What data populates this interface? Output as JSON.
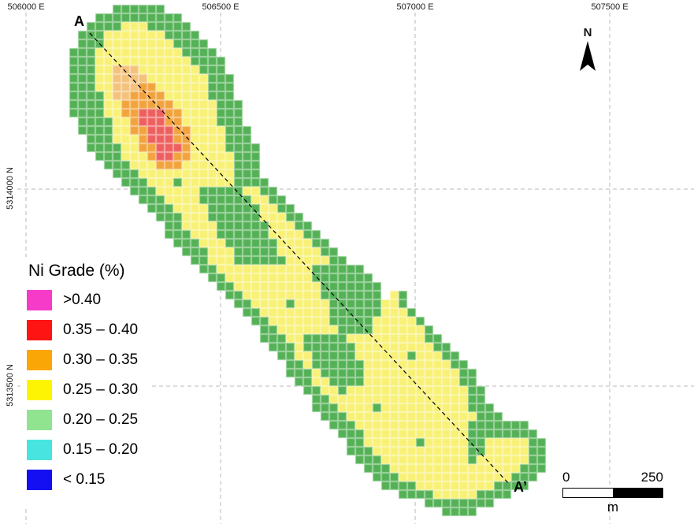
{
  "axes": {
    "top_labels": [
      "506000 E",
      "506500 E",
      "507000 E",
      "507500 E"
    ],
    "left_labels": [
      "5314000 N",
      "5313500 N"
    ]
  },
  "section": {
    "start": "A",
    "end": "A’"
  },
  "north": {
    "label": "N"
  },
  "scalebar": {
    "zero": "0",
    "max": "250",
    "unit": "m"
  },
  "legend": {
    "title": "Ni Grade (%)",
    "items": [
      {
        "label": ">0.40",
        "color": "#f73bc9"
      },
      {
        "label": "0.35 – 0.40",
        "color": "#fe1412"
      },
      {
        "label": "0.30 – 0.35",
        "color": "#fba607"
      },
      {
        "label": "0.25 – 0.30",
        "color": "#fdf403"
      },
      {
        "label": "0.20 – 0.25",
        "color": "#90e48f"
      },
      {
        "label": "0.15 – 0.20",
        "color": "#48e5e0"
      },
      {
        "label": "< 0.15",
        "color": "#140ff2"
      }
    ]
  },
  "map": {
    "type": "heatmap",
    "description": "Ni grade block model plan view, elongated NW-SE body",
    "palette": {
      "g": "#54b156",
      "y": "#f8f176",
      "O": "#f4c27c",
      "o": "#f2a33c",
      "r": "#ee6060"
    },
    "cell_border": "rgba(255,255,255,0.45)",
    "rows": [
      ".....gggggg",
      "...gggggggggg",
      "..ggggyyyggggg",
      ".gggyyyyyyygggg",
      ".gggyyyyyyyygggg",
      "gggyyyyyyyyyygggg",
      "gggyyyyyyyyyyygggg",
      "gggyyOOOyyyyyyyggg",
      "gggyyOOOOyyyyyyyggg",
      "gggyyOOOooyyyyyyggg",
      "ggggyOOooooyyyyyggg",
      "ggggyyooooooyyyyyggg",
      "ggggyyoorrrooyyyyggg",
      ".ggggyyorrrooyyyyggg",
      ".ggggyyoorrrooyyyyggg",
      "..gggyyyorrrooyyyyggg",
      "..ggggyyoorrroyyyygggg",
      "...gggyyyorrooyyyyyggg",
      "....gggyyyoooyyyyyyggg",
      ".....gggyyyyyyyyyyyggg",
      "......gggyyygyyyyyygggg",
      ".......gggyyyyygggggyygg",
      "........gggyyyyggggggyygg",
      ".........gggyyyyggggggyygg",
      "..........gggyyyggggggyyygg",
      "...........ggyyyyggggggyyygg",
      "...........gggyyyggggggyyyygg",
      "............gggyyyggggggyyyygg",
      ".............gggyyygggggyyyyygg",
      "..............ggyyyggggggyyyyygg",
      "...............ggyyyyyyyyyyygggggg",
      "................ggyyyyyyyyyyggggggg",
      ".................ggyyyyyyyyyyggggggg",
      "..................ggyyyyyyyyyggggggg yg",
      "...................ggyyyygyyyyggggggyyg",
      "....................ggyyyyyyyyggggggyyyg",
      ".....................ggyyyyyyygggggyyyyyg",
      "......................ggyyyyyyyggggyyyyyyg",
      "......................gggyygggggyyyyyyyyygg",
      ".......................gggyggggggyyyyyyyyygg",
      "........................ggyygggggyyyyyygyyygg",
      ".........................ggyggggggyyyyyyyyyygg",
      ".........................gggygggggyyyyyyyyyyygg",
      "..........................ggyyggggyyyyyyyyyyygg",
      "...........................ggyygyyyyyyyyyyyyyygg",
      "............................ggyyyyyyyyyyyyyyyygg",
      "............................gggyyyygyyyyyyyyyyggg",
      ".............................gggyyyyyyyyyyyyyyyggg",
      "..............................gggyyyyyyyyyyyyyggggggg",
      "...............................gggyyyyyyyyyyyygggggggg",
      "................................ggyyyyyygyyyyyggyyyyygg",
      "................................gggyyyyyyyyyyyggyyyyygg",
      ".................................gggyyyyyyyyyygyyyyyygg",
      "..................................gggyyyyyyyyyyyyyyyggg",
      "...................................gggyyyyyyyyyyyyyggg",
      "....................................ggggyyyyyyyyygggg",
      "......................................ggggyyyyygggg",
      ".........................................gggggggg",
      "...........................................gggg"
    ]
  }
}
